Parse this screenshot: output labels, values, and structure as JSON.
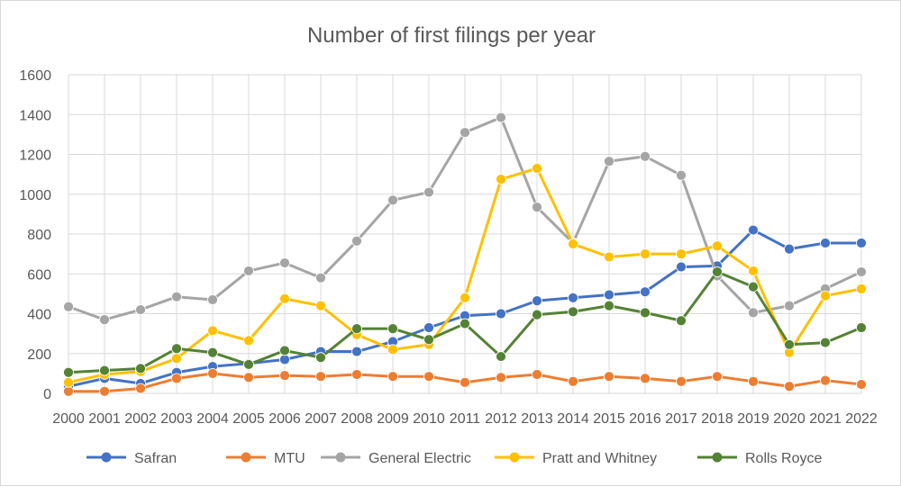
{
  "chart_data": {
    "type": "line",
    "title": "Number of first filings per year",
    "xlabel": "",
    "ylabel": "",
    "ylim": [
      0,
      1600
    ],
    "yticks": [
      0,
      200,
      400,
      600,
      800,
      1000,
      1200,
      1400,
      1600
    ],
    "grid": true,
    "legend_position": "bottom",
    "x": [
      "2000",
      "2001",
      "2002",
      "2003",
      "2004",
      "2005",
      "2006",
      "2007",
      "2008",
      "2009",
      "2010",
      "2011",
      "2012",
      "2013",
      "2014",
      "2015",
      "2016",
      "2017",
      "2018",
      "2019",
      "2020",
      "2021",
      "2022"
    ],
    "series": [
      {
        "name": "Safran",
        "color": "#4472c4",
        "values": [
          35,
          75,
          50,
          105,
          135,
          150,
          170,
          210,
          210,
          260,
          330,
          390,
          400,
          465,
          480,
          495,
          510,
          635,
          640,
          820,
          725,
          755,
          755
        ]
      },
      {
        "name": "MTU",
        "color": "#ed7d31",
        "values": [
          10,
          10,
          25,
          75,
          100,
          80,
          90,
          85,
          95,
          85,
          85,
          55,
          80,
          95,
          60,
          85,
          75,
          60,
          85,
          60,
          35,
          65,
          45
        ]
      },
      {
        "name": "General Electric",
        "color": "#a5a5a5",
        "values": [
          435,
          370,
          420,
          485,
          470,
          615,
          655,
          580,
          765,
          970,
          1010,
          1310,
          1385,
          935,
          755,
          1165,
          1190,
          1095,
          590,
          405,
          440,
          525,
          610
        ]
      },
      {
        "name": "Pratt and Whitney",
        "color": "#ffc000",
        "values": [
          55,
          95,
          110,
          175,
          315,
          265,
          475,
          440,
          295,
          220,
          245,
          480,
          1075,
          1130,
          750,
          685,
          700,
          700,
          740,
          615,
          205,
          490,
          525
        ]
      },
      {
        "name": "Rolls Royce",
        "color": "#548235",
        "values": [
          105,
          115,
          125,
          225,
          205,
          145,
          215,
          180,
          325,
          325,
          270,
          350,
          185,
          395,
          410,
          440,
          405,
          365,
          610,
          535,
          245,
          255,
          330
        ]
      }
    ]
  }
}
